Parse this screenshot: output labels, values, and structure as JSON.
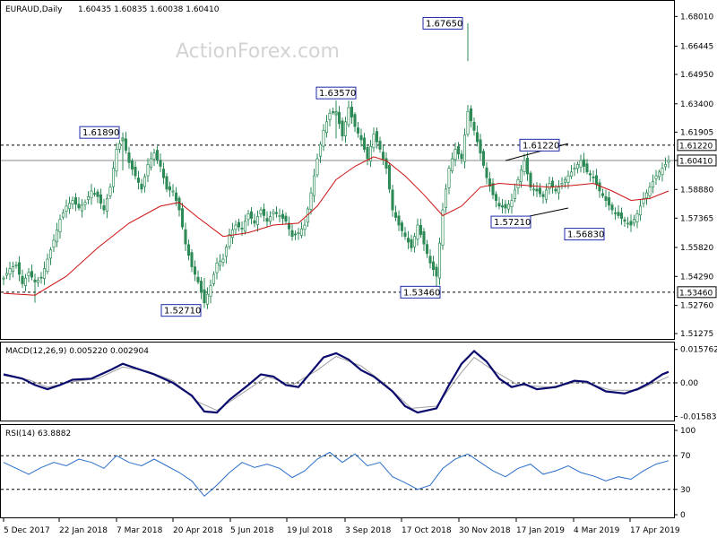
{
  "header": {
    "symbol": "EURAUD,Daily",
    "ohlc": "1.60435 1.60835 1.60038 1.60410"
  },
  "watermark": "ActionForex.com",
  "colors": {
    "candle": "#2e8b57",
    "ma": "#cc1111",
    "macd": "#0a0a6e",
    "signal": "#a0a0a0",
    "rsi": "#2a6fc9",
    "level_line": "#000000"
  },
  "chart_data": [
    {
      "type": "candlestick",
      "panel": "price",
      "ylim": [
        1.51275,
        1.685
      ],
      "y_ticks": [
        "1.68010",
        "1.66445",
        "1.64950",
        "1.63400",
        "1.61905",
        "1.60410",
        "1.58880",
        "1.57365",
        "1.55820",
        "1.54290",
        "1.52760",
        "1.51275"
      ],
      "x_tick_labels": [
        "5 Dec 2017",
        "22 Jan 2018",
        "7 Mar 2018",
        "20 Apr 2018",
        "5 Jun 2018",
        "19 Jul 2018",
        "3 Sep 2018",
        "17 Oct 2018",
        "30 Nov 2018",
        "17 Jan 2019",
        "4 Mar 2019",
        "17 Apr 2019"
      ],
      "close_path": [
        [
          0,
          1.542
        ],
        [
          2,
          1.547
        ],
        [
          4,
          1.549
        ],
        [
          6,
          1.539
        ],
        [
          8,
          1.545
        ],
        [
          10,
          1.54
        ],
        [
          12,
          1.542
        ],
        [
          14,
          1.552
        ],
        [
          16,
          1.562
        ],
        [
          18,
          1.573
        ],
        [
          20,
          1.58
        ],
        [
          22,
          1.583
        ],
        [
          24,
          1.579
        ],
        [
          26,
          1.582
        ],
        [
          28,
          1.588
        ],
        [
          30,
          1.585
        ],
        [
          32,
          1.578
        ],
        [
          34,
          1.59
        ],
        [
          36,
          1.61
        ],
        [
          38,
          1.616
        ],
        [
          40,
          1.603
        ],
        [
          42,
          1.596
        ],
        [
          44,
          1.589
        ],
        [
          46,
          1.602
        ],
        [
          48,
          1.608
        ],
        [
          50,
          1.601
        ],
        [
          52,
          1.589
        ],
        [
          54,
          1.588
        ],
        [
          56,
          1.578
        ],
        [
          58,
          1.56
        ],
        [
          60,
          1.548
        ],
        [
          62,
          1.54
        ],
        [
          64,
          1.529
        ],
        [
          66,
          1.538
        ],
        [
          68,
          1.55
        ],
        [
          70,
          1.552
        ],
        [
          72,
          1.565
        ],
        [
          74,
          1.57
        ],
        [
          76,
          1.568
        ],
        [
          78,
          1.576
        ],
        [
          80,
          1.571
        ],
        [
          82,
          1.578
        ],
        [
          84,
          1.572
        ],
        [
          86,
          1.577
        ],
        [
          88,
          1.575
        ],
        [
          90,
          1.572
        ],
        [
          92,
          1.564
        ],
        [
          94,
          1.566
        ],
        [
          96,
          1.57
        ],
        [
          98,
          1.587
        ],
        [
          100,
          1.605
        ],
        [
          102,
          1.62
        ],
        [
          104,
          1.629
        ],
        [
          106,
          1.63
        ],
        [
          108,
          1.617
        ],
        [
          110,
          1.632
        ],
        [
          112,
          1.622
        ],
        [
          114,
          1.615
        ],
        [
          116,
          1.605
        ],
        [
          118,
          1.618
        ],
        [
          120,
          1.61
        ],
        [
          122,
          1.6
        ],
        [
          124,
          1.578
        ],
        [
          126,
          1.57
        ],
        [
          128,
          1.564
        ],
        [
          130,
          1.558
        ],
        [
          132,
          1.57
        ],
        [
          134,
          1.56
        ],
        [
          136,
          1.55
        ],
        [
          138,
          1.543
        ],
        [
          140,
          1.578
        ],
        [
          142,
          1.6
        ],
        [
          144,
          1.61
        ],
        [
          146,
          1.605
        ],
        [
          148,
          1.63
        ],
        [
          150,
          1.62
        ],
        [
          152,
          1.608
        ],
        [
          154,
          1.595
        ],
        [
          156,
          1.586
        ],
        [
          158,
          1.58
        ],
        [
          160,
          1.579
        ],
        [
          162,
          1.583
        ],
        [
          164,
          1.594
        ],
        [
          166,
          1.604
        ],
        [
          168,
          1.59
        ],
        [
          170,
          1.588
        ],
        [
          172,
          1.585
        ],
        [
          174,
          1.592
        ],
        [
          176,
          1.588
        ],
        [
          178,
          1.592
        ],
        [
          180,
          1.596
        ],
        [
          182,
          1.6
        ],
        [
          184,
          1.604
        ],
        [
          186,
          1.598
        ],
        [
          188,
          1.595
        ],
        [
          190,
          1.588
        ],
        [
          192,
          1.583
        ],
        [
          194,
          1.578
        ],
        [
          196,
          1.575
        ],
        [
          198,
          1.572
        ],
        [
          200,
          1.57
        ],
        [
          202,
          1.576
        ],
        [
          204,
          1.584
        ],
        [
          206,
          1.59
        ],
        [
          208,
          1.596
        ],
        [
          210,
          1.6
        ],
        [
          212,
          1.6041
        ]
      ],
      "moving_average": [
        [
          0,
          1.534
        ],
        [
          10,
          1.533
        ],
        [
          20,
          1.543
        ],
        [
          30,
          1.558
        ],
        [
          40,
          1.571
        ],
        [
          50,
          1.58
        ],
        [
          56,
          1.582
        ],
        [
          62,
          1.574
        ],
        [
          70,
          1.564
        ],
        [
          78,
          1.566
        ],
        [
          86,
          1.57
        ],
        [
          94,
          1.571
        ],
        [
          100,
          1.58
        ],
        [
          106,
          1.594
        ],
        [
          112,
          1.601
        ],
        [
          118,
          1.606
        ],
        [
          122,
          1.604
        ],
        [
          128,
          1.596
        ],
        [
          134,
          1.586
        ],
        [
          140,
          1.575
        ],
        [
          146,
          1.58
        ],
        [
          152,
          1.59
        ],
        [
          158,
          1.592
        ],
        [
          166,
          1.591
        ],
        [
          174,
          1.59
        ],
        [
          182,
          1.591
        ],
        [
          188,
          1.592
        ],
        [
          194,
          1.588
        ],
        [
          200,
          1.583
        ],
        [
          206,
          1.584
        ],
        [
          212,
          1.588
        ]
      ],
      "horizontal_levels": [
        {
          "label": "1.61220",
          "value": 1.6122
        },
        {
          "label": "1.60410",
          "value": 1.6041
        },
        {
          "label": "1.53460",
          "value": 1.5346
        }
      ],
      "annotations": [
        {
          "text": "1.61890",
          "x": 38,
          "y": 1.6189
        },
        {
          "text": "1.52710",
          "x": 64,
          "y": 1.5271
        },
        {
          "text": "1.63570",
          "x": 106,
          "y": 1.6357
        },
        {
          "text": "1.67650",
          "x": 148,
          "y": 1.6765
        },
        {
          "text": "1.53460",
          "x": 138,
          "y": 1.5346
        },
        {
          "text": "1.57210",
          "x": 160,
          "y": 1.5721
        },
        {
          "text": "1.61220",
          "x": 168,
          "y": 1.6122
        },
        {
          "text": "1.56830",
          "x": 184,
          "y": 1.5683
        }
      ],
      "trend_lines": [
        {
          "from": [
            160,
            1.604
          ],
          "to": [
            180,
            1.613
          ]
        },
        {
          "from": [
            160,
            1.5721
          ],
          "to": [
            180,
            1.579
          ]
        }
      ]
    },
    {
      "type": "line",
      "panel": "macd",
      "title": "MACD(12,26,9) 0.005220 0.002904",
      "ylim": [
        -0.0165,
        0.0165
      ],
      "y_ticks": [
        "0.015762",
        "0.00",
        "-0.015834"
      ],
      "series": [
        {
          "name": "MACD",
          "values": [
            [
              0,
              0.004
            ],
            [
              6,
              0.002
            ],
            [
              10,
              -0.001
            ],
            [
              14,
              -0.003
            ],
            [
              18,
              -0.001
            ],
            [
              22,
              0.0015
            ],
            [
              28,
              0.002
            ],
            [
              34,
              0.006
            ],
            [
              38,
              0.009
            ],
            [
              42,
              0.007
            ],
            [
              48,
              0.004
            ],
            [
              54,
              0.0
            ],
            [
              60,
              -0.006
            ],
            [
              64,
              -0.0135
            ],
            [
              68,
              -0.014
            ],
            [
              72,
              -0.008
            ],
            [
              78,
              -0.001
            ],
            [
              82,
              0.004
            ],
            [
              86,
              0.003
            ],
            [
              90,
              -0.001
            ],
            [
              94,
              -0.002
            ],
            [
              98,
              0.005
            ],
            [
              102,
              0.012
            ],
            [
              106,
              0.014
            ],
            [
              110,
              0.011
            ],
            [
              114,
              0.006
            ],
            [
              118,
              0.003
            ],
            [
              124,
              -0.004
            ],
            [
              128,
              -0.011
            ],
            [
              132,
              -0.014
            ],
            [
              138,
              -0.012
            ],
            [
              142,
              -0.001
            ],
            [
              146,
              0.009
            ],
            [
              150,
              0.015
            ],
            [
              154,
              0.01
            ],
            [
              158,
              0.002
            ],
            [
              162,
              -0.002
            ],
            [
              166,
              -0.0005
            ],
            [
              170,
              -0.003
            ],
            [
              176,
              -0.002
            ],
            [
              182,
              0.001
            ],
            [
              186,
              0.0005
            ],
            [
              192,
              -0.004
            ],
            [
              198,
              -0.005
            ],
            [
              202,
              -0.003
            ],
            [
              206,
              0.0
            ],
            [
              210,
              0.004
            ],
            [
              212,
              0.0052
            ]
          ]
        },
        {
          "name": "Signal",
          "values": [
            [
              0,
              0.0035
            ],
            [
              8,
              0.0015
            ],
            [
              14,
              -0.002
            ],
            [
              22,
              0.0005
            ],
            [
              30,
              0.002
            ],
            [
              38,
              0.0075
            ],
            [
              46,
              0.0055
            ],
            [
              54,
              0.001
            ],
            [
              62,
              -0.009
            ],
            [
              68,
              -0.013
            ],
            [
              76,
              -0.005
            ],
            [
              84,
              0.003
            ],
            [
              92,
              -0.001
            ],
            [
              100,
              0.006
            ],
            [
              106,
              0.0125
            ],
            [
              114,
              0.008
            ],
            [
              122,
              -0.001
            ],
            [
              130,
              -0.012
            ],
            [
              138,
              -0.011
            ],
            [
              146,
              0.005
            ],
            [
              150,
              0.012
            ],
            [
              156,
              0.006
            ],
            [
              164,
              -0.001
            ],
            [
              174,
              -0.002
            ],
            [
              184,
              0.0005
            ],
            [
              194,
              -0.0035
            ],
            [
              202,
              -0.0035
            ],
            [
              212,
              0.0029
            ]
          ]
        }
      ]
    },
    {
      "type": "line",
      "panel": "rsi",
      "title": "RSI(14) 63.8882",
      "ylim": [
        0,
        100
      ],
      "y_ticks": [
        "100",
        "70",
        "30",
        "0"
      ],
      "reference_levels": [
        70,
        30
      ],
      "series": [
        {
          "name": "RSI",
          "values": [
            [
              0,
              62
            ],
            [
              4,
              55
            ],
            [
              8,
              48
            ],
            [
              12,
              56
            ],
            [
              16,
              62
            ],
            [
              20,
              58
            ],
            [
              24,
              66
            ],
            [
              28,
              62
            ],
            [
              32,
              55
            ],
            [
              36,
              70
            ],
            [
              40,
              62
            ],
            [
              44,
              58
            ],
            [
              48,
              66
            ],
            [
              52,
              58
            ],
            [
              56,
              50
            ],
            [
              60,
              40
            ],
            [
              64,
              22
            ],
            [
              68,
              35
            ],
            [
              72,
              50
            ],
            [
              76,
              62
            ],
            [
              80,
              56
            ],
            [
              84,
              60
            ],
            [
              88,
              55
            ],
            [
              92,
              44
            ],
            [
              96,
              52
            ],
            [
              100,
              66
            ],
            [
              104,
              74
            ],
            [
              108,
              62
            ],
            [
              112,
              72
            ],
            [
              116,
              58
            ],
            [
              120,
              62
            ],
            [
              124,
              45
            ],
            [
              128,
              38
            ],
            [
              132,
              30
            ],
            [
              136,
              35
            ],
            [
              140,
              55
            ],
            [
              144,
              66
            ],
            [
              148,
              72
            ],
            [
              152,
              62
            ],
            [
              156,
              52
            ],
            [
              160,
              45
            ],
            [
              164,
              55
            ],
            [
              168,
              60
            ],
            [
              172,
              48
            ],
            [
              176,
              52
            ],
            [
              180,
              58
            ],
            [
              184,
              50
            ],
            [
              188,
              46
            ],
            [
              192,
              40
            ],
            [
              196,
              45
            ],
            [
              200,
              42
            ],
            [
              204,
              52
            ],
            [
              208,
              60
            ],
            [
              212,
              64
            ]
          ]
        }
      ]
    }
  ]
}
